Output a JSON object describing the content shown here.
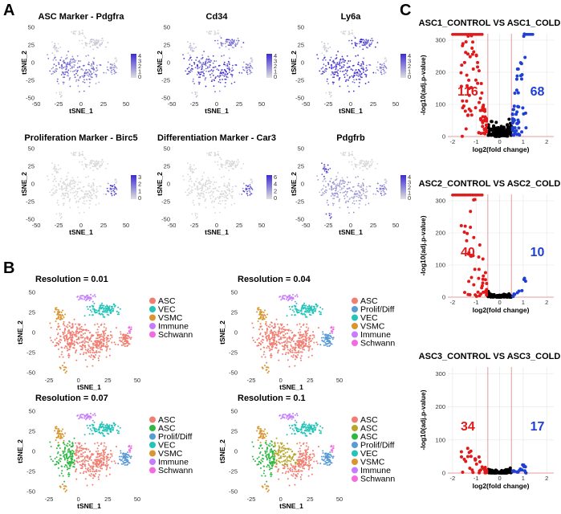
{
  "panel_labels": {
    "a": "A",
    "b": "B",
    "c": "C"
  },
  "axis_labels": {
    "tsne_x": "tSNE_1",
    "tsne_y": "tSNE_2",
    "volcano_x": "log2(fold change)",
    "volcano_y": "-log10(adj.p-value)"
  },
  "colors": {
    "asc": "#f07f72",
    "vec": "#25c3b8",
    "vsmc": "#d99530",
    "immune": "#c77cff",
    "schwann": "#f36be0",
    "prolif": "#5b9bd5",
    "asc2": "#30b843",
    "asc3": "#b8a52a",
    "up": "#1f3fd4",
    "down": "#e01a1a",
    "ns": "#000000",
    "feat_hi": "#3b2bd1"
  },
  "chart_data": [
    {
      "type": "scatter",
      "title": "ASC Marker - Pdgfra",
      "xlabel": "tSNE_1",
      "ylabel": "tSNE_2",
      "xticks": [
        "-50",
        "-25",
        "0",
        "25",
        "50"
      ],
      "yticks": [
        "50",
        "25",
        "0",
        "-25",
        "-50"
      ],
      "colorbar_ticks": [
        "4",
        "3",
        "2",
        "1",
        "0"
      ],
      "expr": {
        "asc": 0.55,
        "vec": 0.1,
        "vsmc": 0.1,
        "immune": 0.05,
        "schwann": 0.05,
        "prolif": 0.4
      }
    },
    {
      "type": "scatter",
      "title": "Cd34",
      "xlabel": "tSNE_1",
      "ylabel": "tSNE_2",
      "xticks": [
        "-50",
        "-25",
        "0",
        "25",
        "50"
      ],
      "yticks": [
        "50",
        "25",
        "0",
        "-25",
        "-50"
      ],
      "colorbar_ticks": [
        "4",
        "3",
        "2",
        "1",
        "0"
      ],
      "expr": {
        "asc": 0.8,
        "vec": 0.6,
        "vsmc": 0.15,
        "immune": 0.05,
        "schwann": 0.1,
        "prolif": 0.5
      }
    },
    {
      "type": "scatter",
      "title": "Ly6a",
      "xlabel": "tSNE_1",
      "ylabel": "tSNE_2",
      "xticks": [
        "-50",
        "-25",
        "0",
        "25",
        "50"
      ],
      "yticks": [
        "50",
        "25",
        "0",
        "-25",
        "-50"
      ],
      "colorbar_ticks": [
        "4",
        "3",
        "2",
        "1",
        "0"
      ],
      "expr": {
        "asc": 0.9,
        "vec": 0.85,
        "vsmc": 0.1,
        "immune": 0.05,
        "schwann": 0.05,
        "prolif": 0.45
      }
    },
    {
      "type": "scatter",
      "title": "Proliferation Marker - Birc5",
      "xlabel": "tSNE_1",
      "ylabel": "tSNE_2",
      "xticks": [
        "-50",
        "-25",
        "0",
        "25",
        "50"
      ],
      "yticks": [
        "50",
        "25",
        "0",
        "-25",
        "-50"
      ],
      "colorbar_ticks": [
        "3",
        "2",
        "1",
        "0"
      ],
      "expr": {
        "asc": 0.0,
        "vec": 0.0,
        "vsmc": 0.0,
        "immune": 0.0,
        "schwann": 0.0,
        "prolif": 0.7
      }
    },
    {
      "type": "scatter",
      "title": "Differentiation Marker - Car3",
      "xlabel": "tSNE_1",
      "ylabel": "tSNE_2",
      "xticks": [
        "-50",
        "-25",
        "0",
        "25",
        "50"
      ],
      "yticks": [
        "50",
        "25",
        "0",
        "-25",
        "-50"
      ],
      "colorbar_ticks": [
        "6",
        "4",
        "2",
        "0"
      ],
      "expr": {
        "asc": 0.0,
        "vec": 0.0,
        "vsmc": 0.0,
        "immune": 0.0,
        "schwann": 0.0,
        "prolif": 0.65
      }
    },
    {
      "type": "scatter",
      "title": "Pdgfrb",
      "xlabel": "tSNE_1",
      "ylabel": "tSNE_2",
      "xticks": [
        "-50",
        "-25",
        "0",
        "25",
        "50"
      ],
      "yticks": [
        "50",
        "25",
        "0",
        "-25",
        "-50"
      ],
      "colorbar_ticks": [
        "4",
        "3",
        "2",
        "1",
        "0"
      ],
      "expr": {
        "asc": 0.35,
        "vec": 0.05,
        "vsmc": 0.9,
        "immune": 0.05,
        "schwann": 0.1,
        "prolif": 0.45
      }
    },
    {
      "type": "scatter",
      "title": "Resolution = 0.01",
      "xlabel": "tSNE_1",
      "ylabel": "tSNE_2",
      "xticks": [
        "-25",
        "0",
        "25",
        "50"
      ],
      "yticks": [
        "50",
        "25",
        "0",
        "-25",
        "-50"
      ],
      "legend": [
        {
          "label": "ASC",
          "color": "#f07f72"
        },
        {
          "label": "VEC",
          "color": "#25c3b8"
        },
        {
          "label": "VSMC",
          "color": "#d99530"
        },
        {
          "label": "Immune",
          "color": "#c77cff"
        },
        {
          "label": "Schwann",
          "color": "#f36be0"
        }
      ]
    },
    {
      "type": "scatter",
      "title": "Resolution = 0.04",
      "xlabel": "tSNE_1",
      "ylabel": "tSNE_2",
      "xticks": [
        "-25",
        "0",
        "25",
        "50"
      ],
      "yticks": [
        "50",
        "25",
        "0",
        "-25",
        "-50"
      ],
      "legend": [
        {
          "label": "ASC",
          "color": "#f07f72"
        },
        {
          "label": "Prolif/Diff",
          "color": "#5b9bd5"
        },
        {
          "label": "VEC",
          "color": "#25c3b8"
        },
        {
          "label": "VSMC",
          "color": "#d99530"
        },
        {
          "label": "Immune",
          "color": "#c77cff"
        },
        {
          "label": "Schwann",
          "color": "#f36be0"
        }
      ]
    },
    {
      "type": "scatter",
      "title": "Resolution = 0.07",
      "xlabel": "tSNE_1",
      "ylabel": "tSNE_2",
      "xticks": [
        "-25",
        "0",
        "25",
        "50"
      ],
      "yticks": [
        "50",
        "25",
        "0",
        "-25",
        "-50"
      ],
      "legend": [
        {
          "label": "ASC",
          "color": "#f07f72"
        },
        {
          "label": "ASC",
          "color": "#30b843"
        },
        {
          "label": "Prolif/Diff",
          "color": "#5b9bd5"
        },
        {
          "label": "VEC",
          "color": "#25c3b8"
        },
        {
          "label": "VSMC",
          "color": "#d99530"
        },
        {
          "label": "Immune",
          "color": "#c77cff"
        },
        {
          "label": "Schwann",
          "color": "#f36be0"
        }
      ]
    },
    {
      "type": "scatter",
      "title": "Resolution = 0.1",
      "xlabel": "tSNE_1",
      "ylabel": "tSNE_2",
      "xticks": [
        "-25",
        "0",
        "25",
        "50"
      ],
      "yticks": [
        "50",
        "25",
        "0",
        "-25",
        "-50"
      ],
      "legend": [
        {
          "label": "ASC",
          "color": "#f07f72"
        },
        {
          "label": "ASC",
          "color": "#b8a52a"
        },
        {
          "label": "ASC",
          "color": "#30b843"
        },
        {
          "label": "Prolif/Diff",
          "color": "#5b9bd5"
        },
        {
          "label": "VEC",
          "color": "#25c3b8"
        },
        {
          "label": "VSMC",
          "color": "#d99530"
        },
        {
          "label": "Immune",
          "color": "#c77cff"
        },
        {
          "label": "Schwann",
          "color": "#f36be0"
        }
      ]
    },
    {
      "type": "scatter",
      "title": "ASC1_CONTROL VS ASC1_COLD",
      "xlabel": "log2(fold change)",
      "ylabel": "-log10(adj.p-value)",
      "xlim": [
        -2.2,
        2.3
      ],
      "ylim": [
        0,
        320
      ],
      "xticks": [
        -2,
        -1,
        0,
        1,
        2
      ],
      "yticks": [
        0,
        100,
        200,
        300
      ],
      "thresholds": [
        -0.5,
        0.5
      ],
      "down_count": "116",
      "up_count": "68",
      "down_max": 320,
      "up_max": 320
    },
    {
      "type": "scatter",
      "title": "ASC2_CONTROL VS ASC2_COLD",
      "xlabel": "log2(fold change)",
      "ylabel": "-log10(adj.p-value)",
      "xlim": [
        -2.2,
        2.3
      ],
      "ylim": [
        0,
        320
      ],
      "xticks": [
        -2,
        -1,
        0,
        1,
        2
      ],
      "yticks": [
        0,
        100,
        200,
        300
      ],
      "thresholds": [
        -0.5,
        0.5
      ],
      "down_count": "40",
      "up_count": "10",
      "down_max": 320,
      "up_max": 60
    },
    {
      "type": "scatter",
      "title": "ASC3_CONTROL VS ASC3_COLD",
      "xlabel": "log2(fold change)",
      "ylabel": "-log10(adj.p-value)",
      "xlim": [
        -2.2,
        2.3
      ],
      "ylim": [
        0,
        320
      ],
      "xticks": [
        -2,
        -1,
        0,
        1,
        2
      ],
      "yticks": [
        0,
        100,
        200,
        300
      ],
      "thresholds": [
        -0.5,
        0.5
      ],
      "down_count": "34",
      "up_count": "17",
      "down_max": 75,
      "up_max": 25
    }
  ]
}
